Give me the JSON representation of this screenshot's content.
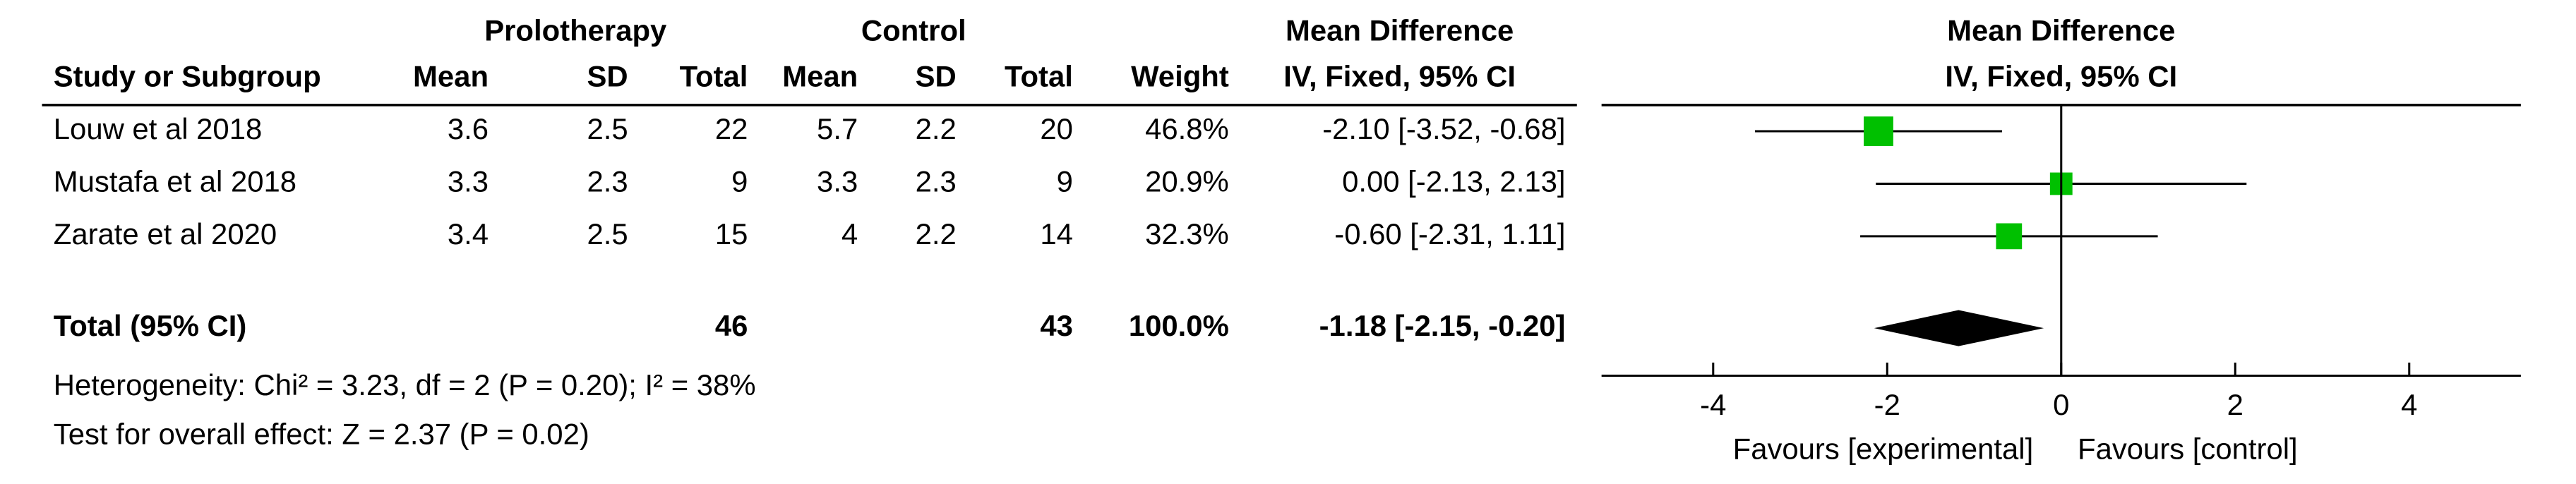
{
  "chart_data": {
    "type": "forest",
    "group_headers": [
      "Prolotherapy",
      "Control",
      "Mean Difference"
    ],
    "columns": [
      "Study or Subgroup",
      "Mean",
      "SD",
      "Total",
      "Mean",
      "SD",
      "Total",
      "Weight",
      "IV, Fixed, 95% CI"
    ],
    "plot_header": [
      "Mean Difference",
      "IV, Fixed, 95% CI"
    ],
    "studies": [
      {
        "name": "Louw et al 2018",
        "exp_mean": 3.6,
        "exp_sd": 2.5,
        "exp_total": 22,
        "ctl_mean": 5.7,
        "ctl_sd": 2.2,
        "ctl_total": 20,
        "weight": 46.8,
        "weight_label": "46.8%",
        "md": -2.1,
        "ci_low": -3.52,
        "ci_high": -0.68,
        "ci_label": "-2.10 [-3.52, -0.68]"
      },
      {
        "name": "Mustafa et al 2018",
        "exp_mean": 3.3,
        "exp_sd": 2.3,
        "exp_total": 9,
        "ctl_mean": 3.3,
        "ctl_sd": 2.3,
        "ctl_total": 9,
        "weight": 20.9,
        "weight_label": "20.9%",
        "md": 0,
        "ci_low": -2.13,
        "ci_high": 2.13,
        "ci_label": "0.00 [-2.13, 2.13]"
      },
      {
        "name": "Zarate et al 2020",
        "exp_mean": 3.4,
        "exp_sd": 2.5,
        "exp_total": 15,
        "ctl_mean": 4,
        "ctl_sd": 2.2,
        "ctl_total": 14,
        "weight": 32.3,
        "weight_label": "32.3%",
        "md": -0.6,
        "ci_low": -2.31,
        "ci_high": 1.11,
        "ci_label": "-0.60 [-2.31, 1.11]"
      }
    ],
    "total": {
      "name": "Total (95% CI)",
      "exp_total": 46,
      "ctl_total": 43,
      "weight": 100,
      "weight_label": "100.0%",
      "md": -1.18,
      "ci_low": -2.15,
      "ci_high": -0.2,
      "ci_label": "-1.18 [-2.15, -0.20]"
    },
    "heterogeneity": "Heterogeneity: Chi² = 3.23, df = 2 (P = 0.20); I² = 38%",
    "overall_effect": "Test for overall effect: Z = 2.37 (P = 0.02)",
    "xlim": [
      -5,
      5
    ],
    "xticks": [
      -4,
      -2,
      0,
      2,
      4
    ],
    "favours": [
      "Favours [experimental]",
      "Favours [control]"
    ],
    "marker_color": "#00c000",
    "diamond_color": "#000000"
  }
}
